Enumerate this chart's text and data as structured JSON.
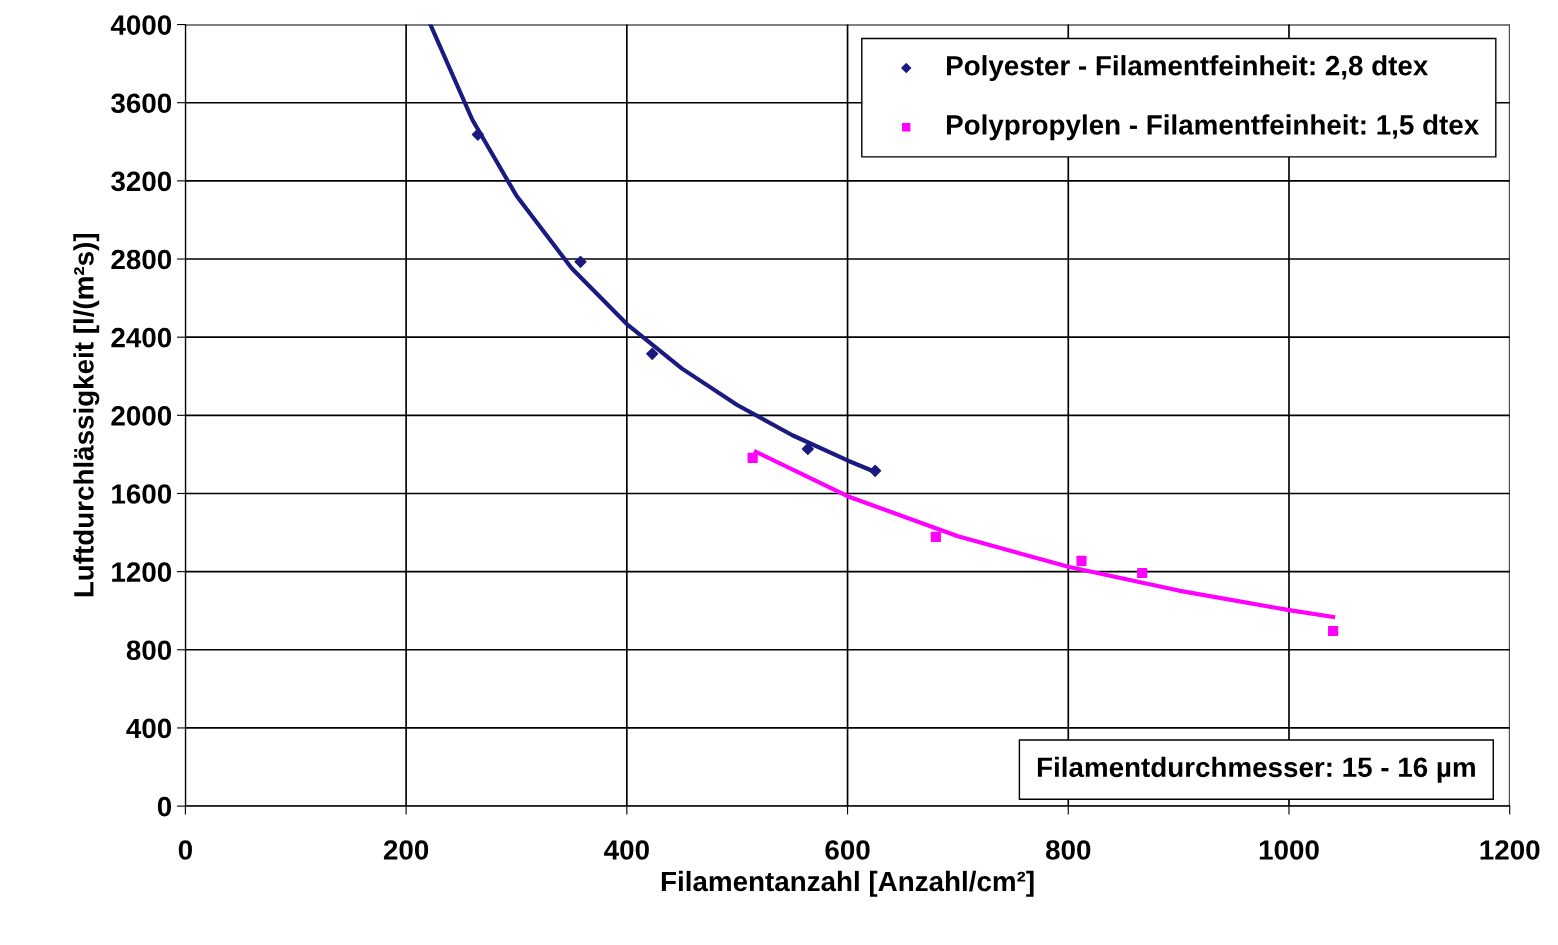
{
  "chart_data": {
    "type": "scatter",
    "xlabel": "Filamentanzahl [Anzahl/cm²]",
    "ylabel": "Luftdurchlässigkeit [l/(m²s)]",
    "xlim": [
      0,
      1200
    ],
    "xticks": [
      0,
      200,
      400,
      600,
      800,
      1000,
      1200
    ],
    "ylim": [
      0,
      4000
    ],
    "yticks": [
      0,
      400,
      800,
      1200,
      1600,
      2000,
      2400,
      2800,
      3200,
      3600,
      4000
    ],
    "grid": true,
    "legend": "top right",
    "annotations": [
      "Filamentdurchmesser: 15 - 16 µm"
    ],
    "series": [
      {
        "name": "Polyester - Filamentfeinheit: 2,8 dtex",
        "marker": "diamond",
        "color": "#1a1a80",
        "x": [
          265,
          358,
          423,
          564,
          625
        ],
        "values": [
          3437,
          2786,
          2315,
          1828,
          1716
        ]
      },
      {
        "name": "Polypropylen - Filamentfeinheit: 1,5 dtex",
        "marker": "square",
        "color": "#ff00ff",
        "x": [
          514,
          680,
          812,
          867,
          1040
        ],
        "values": [
          1782,
          1378,
          1255,
          1193,
          896
        ]
      },
      {
        "type": "line",
        "marker": "none",
        "color": "#1a1a80",
        "x": [
          222,
          260,
          300,
          350,
          400,
          450,
          500,
          550,
          600,
          625
        ],
        "values": [
          4000,
          3513,
          3124,
          2753,
          2467,
          2239,
          2053,
          1898,
          1769,
          1710
        ]
      },
      {
        "type": "line",
        "marker": "none",
        "color": "#ff00ff",
        "x": [
          517,
          600,
          700,
          800,
          900,
          1000,
          1040
        ],
        "values": [
          1813,
          1586,
          1381,
          1225,
          1103,
          1003,
          968
        ]
      }
    ]
  }
}
